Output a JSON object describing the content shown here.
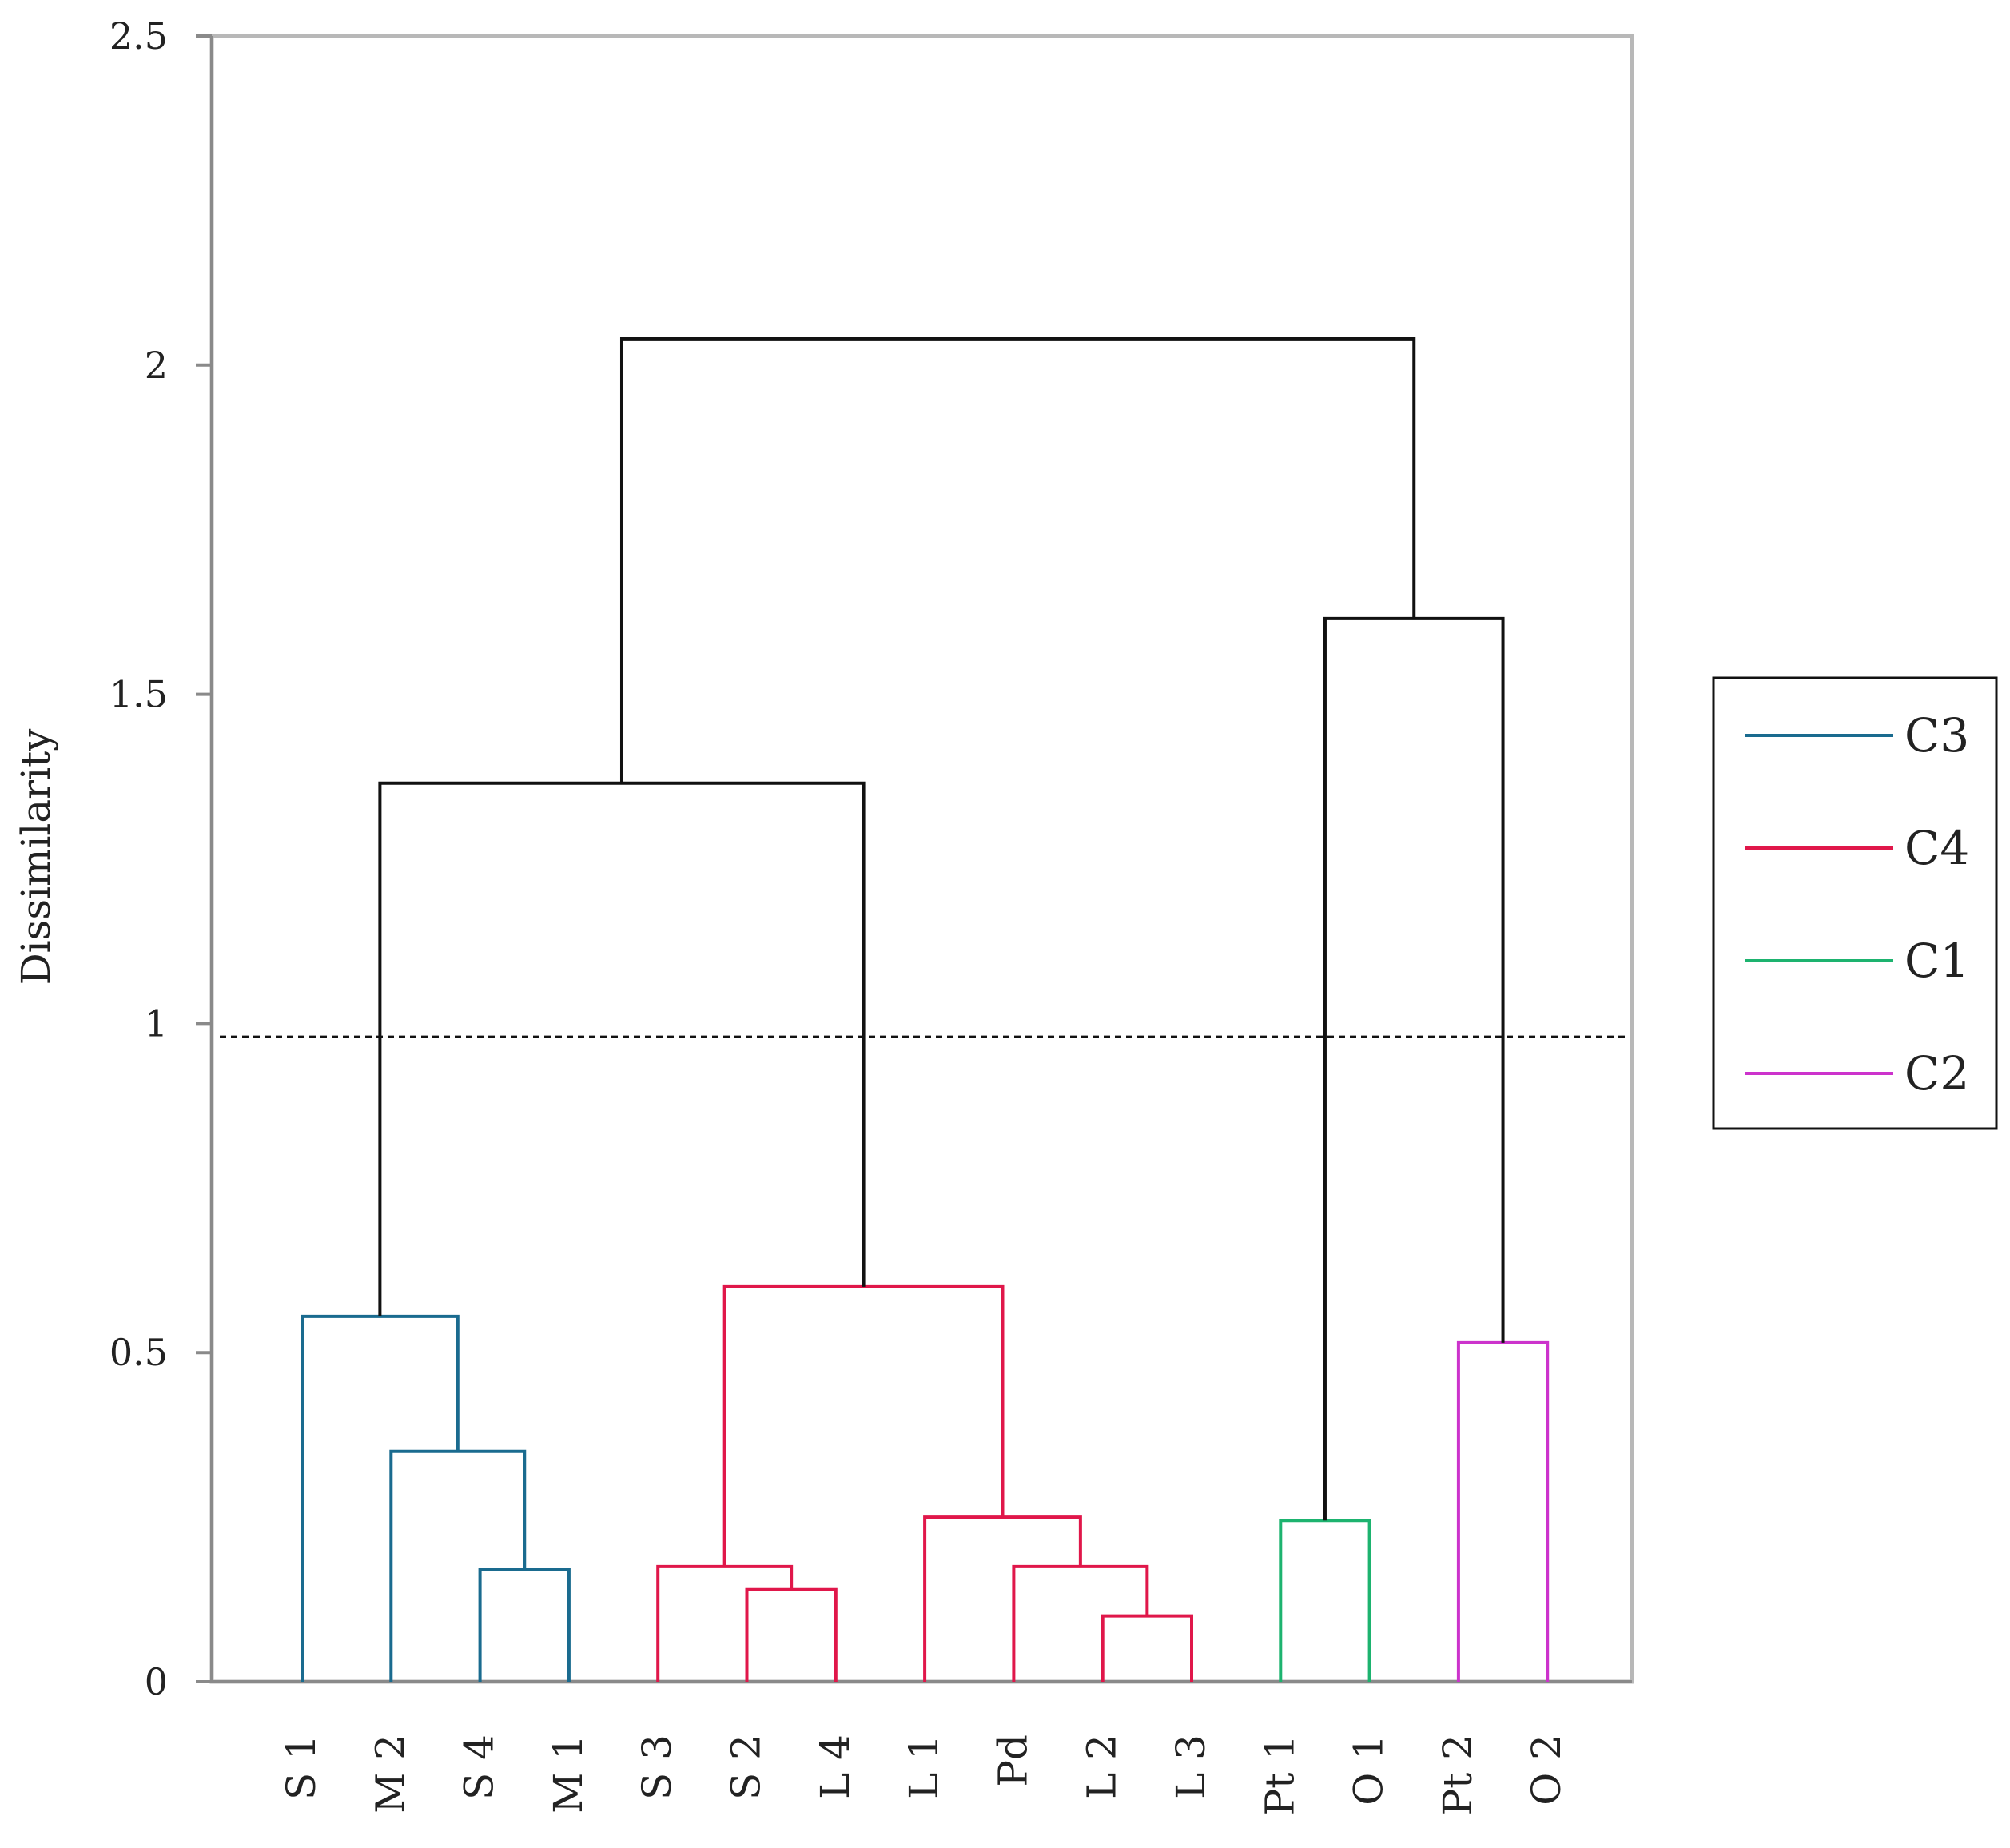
{
  "chart_data": {
    "type": "dendrogram",
    "ylabel": "Dissimilarity",
    "ylim": [
      0,
      2.5
    ],
    "yticks": [
      "0",
      "0.5",
      "1",
      "1.5",
      "2",
      "2.5"
    ],
    "cut_height": 0.98,
    "leaves": [
      "S 1",
      "M 2",
      "S 4",
      "M 1",
      "S 3",
      "S 2",
      "L 4",
      "L 1",
      "Pd",
      "L 2",
      "L 3",
      "Pt 1",
      "O 1",
      "Pt 2",
      "O 2"
    ],
    "clusters": [
      {
        "name": "C3",
        "color": "#1a6b8f",
        "leaves": [
          "S 1",
          "M 2",
          "S 4",
          "M 1"
        ]
      },
      {
        "name": "C4",
        "color": "#e0174a",
        "leaves": [
          "S 3",
          "S 2",
          "L 4",
          "L 1",
          "Pd",
          "L 2",
          "L 3"
        ]
      },
      {
        "name": "C1",
        "color": "#1db36f",
        "leaves": [
          "Pt 1",
          "O 1"
        ]
      },
      {
        "name": "C2",
        "color": "#cc33cc",
        "leaves": [
          "Pt 2",
          "O 2"
        ]
      }
    ],
    "merges": [
      {
        "id": "a1",
        "left": "S 4",
        "right": "M 1",
        "height": 0.17,
        "color": "#1a6b8f"
      },
      {
        "id": "a2",
        "left": "M 2",
        "right": "a1",
        "height": 0.35,
        "color": "#1a6b8f"
      },
      {
        "id": "a3",
        "left": "S 1",
        "right": "a2",
        "height": 0.555,
        "color": "#1a6b8f"
      },
      {
        "id": "b1",
        "left": "S 2",
        "right": "L 4",
        "height": 0.14,
        "color": "#e0174a"
      },
      {
        "id": "b2",
        "left": "S 3",
        "right": "b1",
        "height": 0.175,
        "color": "#e0174a"
      },
      {
        "id": "b3",
        "left": "L 2",
        "right": "L 3",
        "height": 0.1,
        "color": "#e0174a"
      },
      {
        "id": "b4",
        "left": "Pd",
        "right": "b3",
        "height": 0.175,
        "color": "#e0174a"
      },
      {
        "id": "b5",
        "left": "L 1",
        "right": "b4",
        "height": 0.25,
        "color": "#e0174a"
      },
      {
        "id": "b6",
        "left": "b2",
        "right": "b5",
        "height": 0.6,
        "color": "#e0174a"
      },
      {
        "id": "c1",
        "left": "Pt 1",
        "right": "O 1",
        "height": 0.245,
        "color": "#1db36f"
      },
      {
        "id": "d1",
        "left": "Pt 2",
        "right": "O 2",
        "height": 0.515,
        "color": "#cc33cc"
      },
      {
        "id": "e1",
        "left": "a3",
        "right": "b6",
        "height": 1.365,
        "color": "#111111"
      },
      {
        "id": "e2",
        "left": "c1",
        "right": "d1",
        "height": 1.615,
        "color": "#111111"
      },
      {
        "id": "e3",
        "left": "e1",
        "right": "e2",
        "height": 2.04,
        "color": "#111111"
      }
    ],
    "legend": [
      {
        "label": "C3",
        "color": "#1a6b8f"
      },
      {
        "label": "C4",
        "color": "#e0174a"
      },
      {
        "label": "C1",
        "color": "#1db36f"
      },
      {
        "label": "C2",
        "color": "#cc33cc"
      }
    ]
  }
}
